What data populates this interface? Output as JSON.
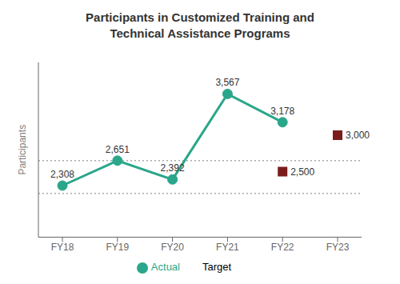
{
  "chart_data": {
    "type": "line",
    "title": "Participants in Customized Training and\nTechnical Assistance Programs",
    "ylabel": "Participants",
    "categories": [
      "FY18",
      "FY19",
      "FY20",
      "FY21",
      "FY22",
      "FY23"
    ],
    "series": [
      {
        "name": "Actual",
        "color": "#2AA68A",
        "marker": "circle",
        "line_style": "solid",
        "values": [
          2308,
          2651,
          2392,
          3567,
          3178,
          null
        ],
        "value_labels": [
          "2,308",
          "2,651",
          "2,392",
          "3,567",
          "3,178",
          null
        ]
      },
      {
        "name": "Target",
        "color": "#7B1C1C",
        "marker": "square",
        "line_style": "none",
        "values": [
          null,
          null,
          null,
          null,
          2500,
          3000
        ],
        "value_labels": [
          null,
          null,
          null,
          null,
          "2,500",
          "3,000"
        ]
      }
    ],
    "hlines": [
      2650,
      2200
    ],
    "ylim": [
      1600,
      4000
    ],
    "tick_labels": "x",
    "data_labels": true,
    "grid": false,
    "legend": "bottom"
  }
}
